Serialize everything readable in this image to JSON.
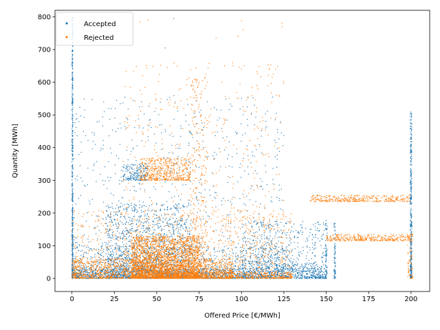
{
  "chart_data": {
    "type": "scatter",
    "xlabel": "Offered Price [€/MWh]",
    "ylabel": "Quantity [MWh]",
    "xlim": [
      -10,
      211
    ],
    "ylim": [
      -40,
      820
    ],
    "xticks": [
      0,
      25,
      50,
      75,
      100,
      125,
      150,
      175,
      200
    ],
    "yticks": [
      0,
      100,
      200,
      300,
      400,
      500,
      600,
      700,
      800
    ],
    "grid": false,
    "legend": "top-left",
    "series": [
      {
        "name": "Accepted",
        "color": "#1f77b4",
        "clusters": [
          {
            "x": [
              0,
              0.6
            ],
            "y": [
              0,
              800
            ],
            "n": 500
          },
          {
            "x": [
              0,
              150
            ],
            "y": [
              0,
              30
            ],
            "n": 1600
          },
          {
            "x": [
              0,
              130
            ],
            "y": [
              0,
              100
            ],
            "n": 900
          },
          {
            "x": [
              20,
              70
            ],
            "y": [
              0,
              230
            ],
            "n": 1300
          },
          {
            "x": [
              0,
              125
            ],
            "y": [
              0,
              560
            ],
            "n": 900
          },
          {
            "x": [
              100,
              150
            ],
            "y": [
              30,
              180
            ],
            "n": 500
          },
          {
            "x": [
              199.5,
              200.5
            ],
            "y": [
              0,
              510
            ],
            "n": 380
          },
          {
            "x": [
              149.5,
              150.5
            ],
            "y": [
              0,
              170
            ],
            "n": 70
          },
          {
            "x": [
              154.5,
              155.5
            ],
            "y": [
              0,
              170
            ],
            "n": 70
          },
          {
            "x": [
              30,
              45
            ],
            "y": [
              300,
              350
            ],
            "n": 180
          }
        ],
        "points": [
          {
            "x": 0,
            "y": 797
          },
          {
            "x": 29,
            "y": 460
          },
          {
            "x": 32,
            "y": 460
          },
          {
            "x": 35,
            "y": 388
          },
          {
            "x": 38,
            "y": 315
          },
          {
            "x": 41,
            "y": 540
          },
          {
            "x": 55,
            "y": 705
          },
          {
            "x": 60,
            "y": 795
          },
          {
            "x": 42,
            "y": 460
          },
          {
            "x": 75,
            "y": 340
          }
        ]
      },
      {
        "name": "Rejected",
        "color": "#ff7f0e",
        "clusters": [
          {
            "x": [
              35,
              75
            ],
            "y": [
              0,
              130
            ],
            "n": 2400
          },
          {
            "x": [
              0,
              95
            ],
            "y": [
              0,
              60
            ],
            "n": 1400
          },
          {
            "x": [
              40,
              70
            ],
            "y": [
              300,
              370
            ],
            "n": 500
          },
          {
            "x": [
              0,
              130
            ],
            "y": [
              0,
              210
            ],
            "n": 1000
          },
          {
            "x": [
              30,
              125
            ],
            "y": [
              0,
              660
            ],
            "n": 600
          },
          {
            "x": [
              140,
              200
            ],
            "y": [
              235,
              255
            ],
            "n": 350
          },
          {
            "x": [
              150,
              201
            ],
            "y": [
              115,
              135
            ],
            "n": 350
          },
          {
            "x": [
              60,
              130
            ],
            "y": [
              0,
              20
            ],
            "n": 500
          },
          {
            "x": [
              70,
              80
            ],
            "y": [
              0,
              620
            ],
            "n": 300
          },
          {
            "x": [
              198,
              201
            ],
            "y": [
              0,
              140
            ],
            "n": 60
          }
        ],
        "points": [
          {
            "x": 100,
            "y": 788
          },
          {
            "x": 124,
            "y": 780
          },
          {
            "x": 124,
            "y": 770
          },
          {
            "x": 85,
            "y": 735
          },
          {
            "x": 40,
            "y": 785
          },
          {
            "x": 45,
            "y": 790
          },
          {
            "x": 80,
            "y": 600
          },
          {
            "x": 75,
            "y": 600
          },
          {
            "x": 90,
            "y": 650
          },
          {
            "x": 95,
            "y": 650
          },
          {
            "x": 100,
            "y": 640
          },
          {
            "x": 120,
            "y": 640
          },
          {
            "x": 98,
            "y": 740
          },
          {
            "x": 101,
            "y": 760
          },
          {
            "x": 62,
            "y": 520
          },
          {
            "x": 66,
            "y": 520
          }
        ]
      }
    ]
  }
}
